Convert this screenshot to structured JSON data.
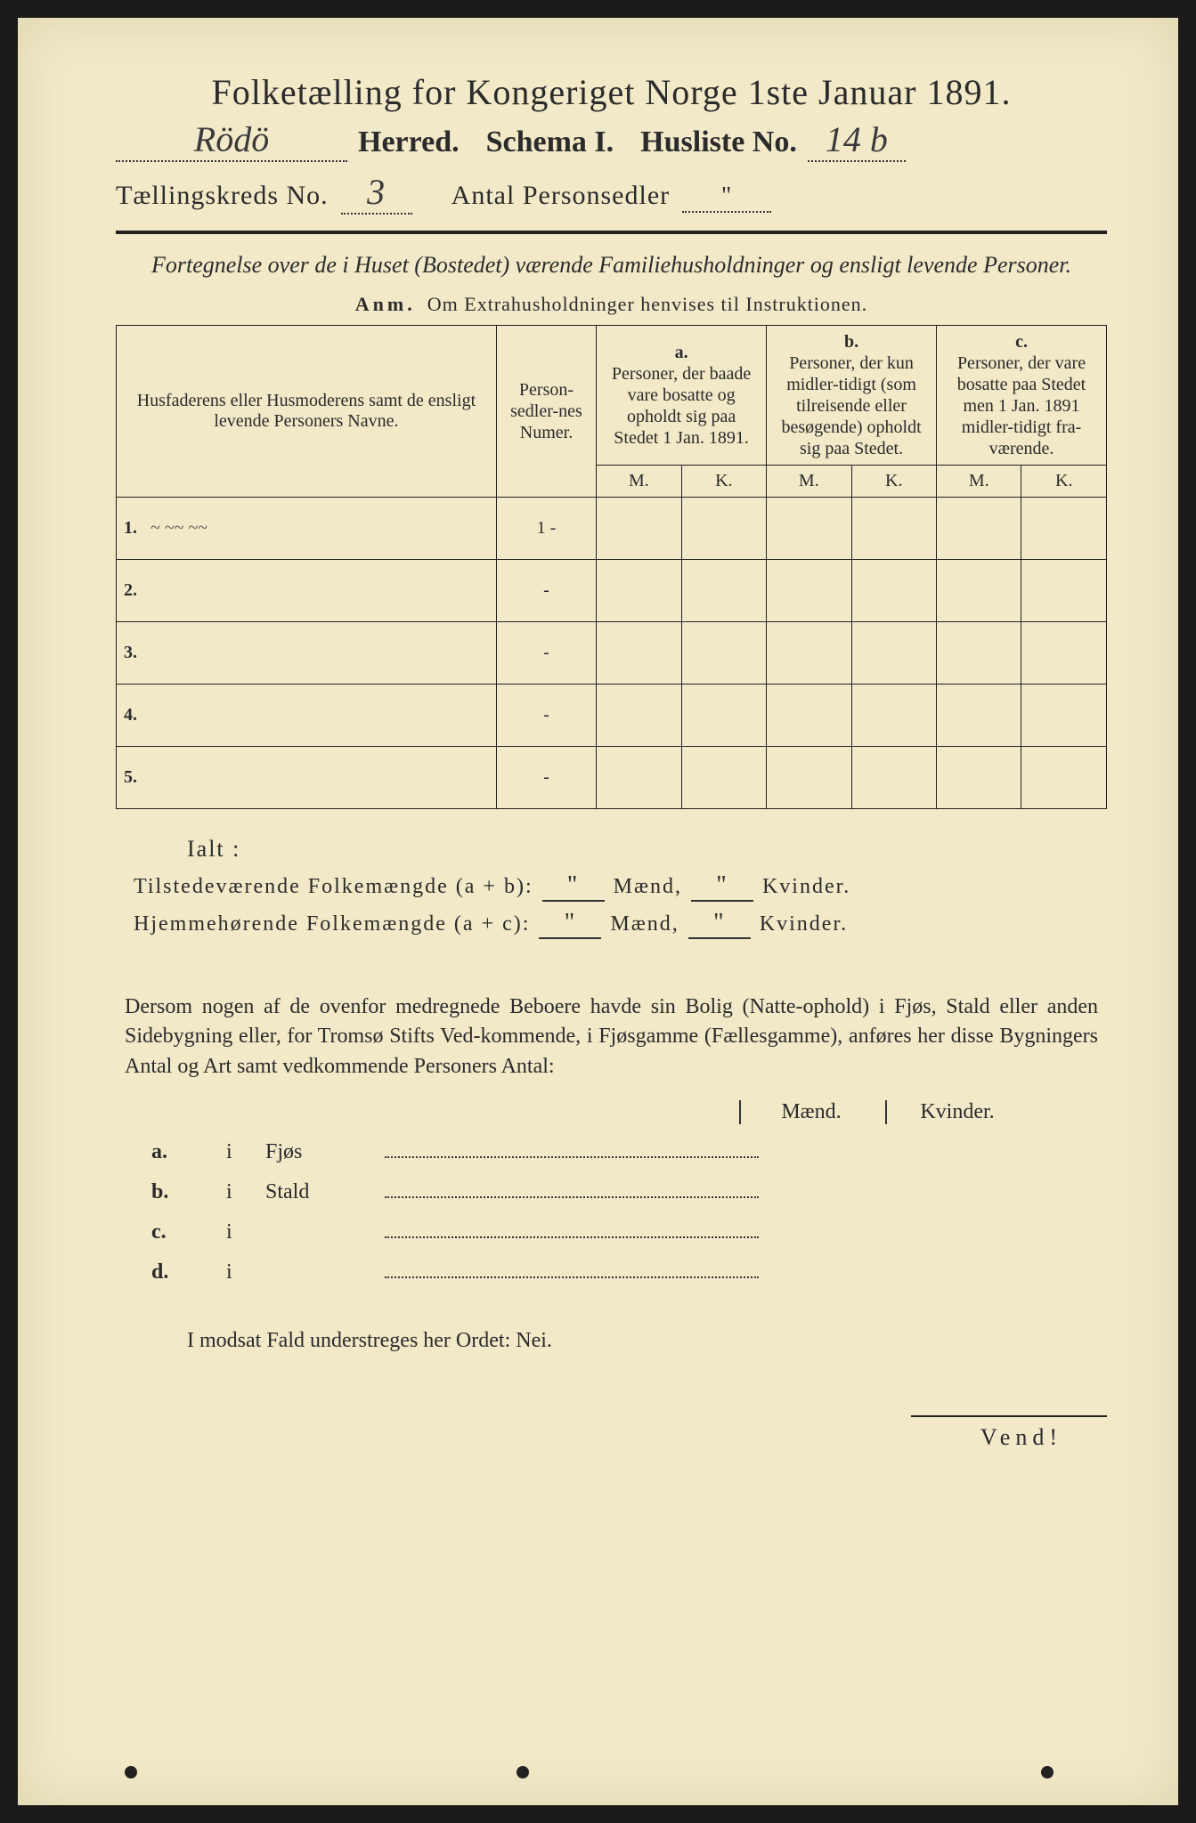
{
  "header": {
    "title_main": "Folketælling for Kongeriget Norge 1ste Januar 1891.",
    "herred_handwritten": "Rödö",
    "herred_label": "Herred.",
    "schema_label": "Schema I.",
    "husliste_label": "Husliste No.",
    "husliste_value": "14 b",
    "kreds_label": "Tællingskreds No.",
    "kreds_value": "3",
    "antal_label": "Antal Personsedler",
    "antal_value": "\""
  },
  "section": {
    "intro": "Fortegnelse over de i Huset (Bostedet) værende Familiehusholdninger og ensligt levende Personer.",
    "anm_bold": "Anm.",
    "anm_text": "Om Extrahusholdninger henvises til Instruktionen."
  },
  "table": {
    "col_name": "Husfaderens eller Husmoderens samt de ensligt levende Personers Navne.",
    "col_num": "Person-sedler-nes Numer.",
    "col_a_label": "a.",
    "col_a": "Personer, der baade vare bosatte og opholdt sig paa Stedet 1 Jan. 1891.",
    "col_b_label": "b.",
    "col_b": "Personer, der kun midler-tidigt (som tilreisende eller besøgende) opholdt sig paa Stedet.",
    "col_c_label": "c.",
    "col_c": "Personer, der vare bosatte paa Stedet men 1 Jan. 1891 midler-tidigt fra-værende.",
    "M": "M.",
    "K": "K.",
    "rows": [
      {
        "n": "1.",
        "name": "~  ~~  ~~",
        "num": "1 -"
      },
      {
        "n": "2.",
        "name": "",
        "num": "-"
      },
      {
        "n": "3.",
        "name": "",
        "num": "-"
      },
      {
        "n": "4.",
        "name": "",
        "num": "-"
      },
      {
        "n": "5.",
        "name": "",
        "num": "-"
      }
    ]
  },
  "totals": {
    "ialt": "Ialt :",
    "line1_label": "Tilstedeværende Folkemængde (a + b):",
    "line2_label": "Hjemmehørende Folkemængde (a + c):",
    "maend": "Mænd,",
    "kvinder": "Kvinder.",
    "val_m1": "\"",
    "val_k1": "\"",
    "val_m2": "\"",
    "val_k2": "\""
  },
  "para": "Dersom nogen af de ovenfor medregnede Beboere havde sin Bolig (Natte-ophold) i Fjøs, Stald eller anden Sidebygning eller, for Tromsø Stifts Ved-kommende, i Fjøsgamme (Fællesgamme), anføres her disse Bygningers Antal og Art samt vedkommende Personers Antal:",
  "subtable": {
    "hdr_m": "Mænd.",
    "hdr_k": "Kvinder.",
    "rows": [
      {
        "label": "a.",
        "i": "i",
        "name": "Fjøs"
      },
      {
        "label": "b.",
        "i": "i",
        "name": "Stald"
      },
      {
        "label": "c.",
        "i": "i",
        "name": ""
      },
      {
        "label": "d.",
        "i": "i",
        "name": ""
      }
    ]
  },
  "bottom": "I modsat Fald understreges her Ordet: Nei.",
  "vend": "Vend!",
  "style": {
    "page_bg": "#f1e9c8",
    "text_color": "#2b2b2b",
    "rule_color": "#222222",
    "font_title_pt": 40,
    "font_body_pt": 24,
    "font_table_pt": 20
  }
}
